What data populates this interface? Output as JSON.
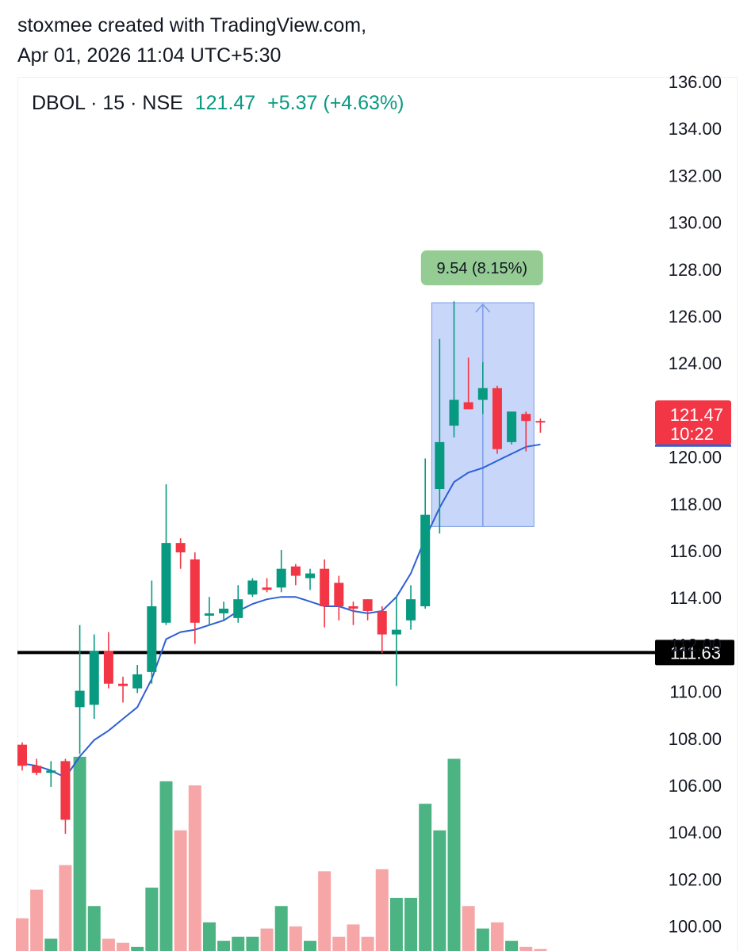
{
  "header": {
    "line1": "stoxmee created with TradingView.com,",
    "line2": "Apr 01, 2026 11:04 UTC+5:30"
  },
  "legend": {
    "symbol": "DBOL · 15 · NSE",
    "price": "121.47",
    "change": "+5.37 (+4.63%)"
  },
  "colors": {
    "up": "#089981",
    "down": "#f23645",
    "vol_up": "#4cb383",
    "vol_down": "#f6a6a6",
    "ma": "#2f5fd6",
    "range_fill": "#c8d6fa",
    "range_stroke": "#7d9ce6",
    "range_label_bg": "#94cc94",
    "level": "#000000"
  },
  "chart_data": {
    "type": "candlestick",
    "y_axis": {
      "min": 99,
      "max": 136,
      "ticks": [
        "136.00",
        "134.00",
        "132.00",
        "130.00",
        "128.00",
        "126.00",
        "124.00",
        "122.00",
        "120.00",
        "118.00",
        "116.00",
        "114.00",
        "112.00",
        "110.00",
        "108.00",
        "106.00",
        "104.00",
        "102.00",
        "100.00"
      ]
    },
    "candles": [
      {
        "o": 107.7,
        "h": 107.8,
        "l": 106.6,
        "c": 106.8
      },
      {
        "o": 106.8,
        "h": 107.1,
        "l": 106.4,
        "c": 106.5
      },
      {
        "o": 106.5,
        "h": 107.0,
        "l": 105.9,
        "c": 106.6
      },
      {
        "o": 107.0,
        "h": 107.1,
        "l": 103.9,
        "c": 104.5
      },
      {
        "o": 109.3,
        "h": 112.8,
        "l": 107.3,
        "c": 110.0
      },
      {
        "o": 109.4,
        "h": 112.4,
        "l": 108.8,
        "c": 111.7
      },
      {
        "o": 111.7,
        "h": 112.5,
        "l": 110.1,
        "c": 110.3
      },
      {
        "o": 110.3,
        "h": 110.6,
        "l": 109.5,
        "c": 110.2
      },
      {
        "o": 110.1,
        "h": 111.1,
        "l": 109.9,
        "c": 110.7
      },
      {
        "o": 110.8,
        "h": 114.7,
        "l": 110.3,
        "c": 113.6
      },
      {
        "o": 112.9,
        "h": 118.8,
        "l": 112.8,
        "c": 116.3
      },
      {
        "o": 116.3,
        "h": 116.5,
        "l": 115.2,
        "c": 115.9
      },
      {
        "o": 115.6,
        "h": 115.9,
        "l": 112.0,
        "c": 112.9
      },
      {
        "o": 113.2,
        "h": 114.0,
        "l": 112.8,
        "c": 113.3
      },
      {
        "o": 113.3,
        "h": 113.8,
        "l": 113.0,
        "c": 113.5
      },
      {
        "o": 113.1,
        "h": 114.5,
        "l": 112.9,
        "c": 113.9
      },
      {
        "o": 114.1,
        "h": 114.8,
        "l": 114.0,
        "c": 114.7
      },
      {
        "o": 114.4,
        "h": 114.8,
        "l": 114.2,
        "c": 114.3
      },
      {
        "o": 114.4,
        "h": 116.0,
        "l": 114.2,
        "c": 115.2
      },
      {
        "o": 115.3,
        "h": 115.4,
        "l": 114.5,
        "c": 114.9
      },
      {
        "o": 114.8,
        "h": 115.2,
        "l": 114.3,
        "c": 115.0
      },
      {
        "o": 115.2,
        "h": 115.6,
        "l": 112.7,
        "c": 113.6
      },
      {
        "o": 114.6,
        "h": 114.9,
        "l": 113.0,
        "c": 113.6
      },
      {
        "o": 113.6,
        "h": 113.8,
        "l": 112.8,
        "c": 113.5
      },
      {
        "o": 113.9,
        "h": 113.9,
        "l": 113.0,
        "c": 113.4
      },
      {
        "o": 113.4,
        "h": 113.6,
        "l": 111.6,
        "c": 112.4
      },
      {
        "o": 112.4,
        "h": 114.0,
        "l": 110.2,
        "c": 112.6
      },
      {
        "o": 113.0,
        "h": 114.5,
        "l": 112.6,
        "c": 113.9
      },
      {
        "o": 113.6,
        "h": 119.9,
        "l": 113.5,
        "c": 117.5
      },
      {
        "o": 118.6,
        "h": 125.0,
        "l": 116.7,
        "c": 120.6
      },
      {
        "o": 121.3,
        "h": 126.6,
        "l": 120.8,
        "c": 122.4
      },
      {
        "o": 122.3,
        "h": 124.2,
        "l": 122.1,
        "c": 122.0
      },
      {
        "o": 122.4,
        "h": 124.0,
        "l": 121.8,
        "c": 122.9
      },
      {
        "o": 122.9,
        "h": 123.0,
        "l": 120.1,
        "c": 120.3
      },
      {
        "o": 120.6,
        "h": 121.9,
        "l": 120.5,
        "c": 121.9
      },
      {
        "o": 121.8,
        "h": 121.9,
        "l": 120.2,
        "c": 121.5
      },
      {
        "o": 121.5,
        "h": 121.6,
        "l": 121.0,
        "c": 121.47
      }
    ],
    "volume_relative": [
      0.16,
      0.3,
      0.06,
      0.42,
      0.95,
      0.22,
      0.06,
      0.04,
      0.02,
      0.31,
      0.83,
      0.59,
      0.81,
      0.14,
      0.05,
      0.07,
      0.07,
      0.11,
      0.22,
      0.12,
      0.05,
      0.39,
      0.07,
      0.13,
      0.07,
      0.4,
      0.26,
      0.26,
      0.72,
      0.59,
      0.94,
      0.22,
      0.11,
      0.14,
      0.05,
      0.02,
      0.01
    ],
    "ma": [
      106.9,
      106.8,
      106.6,
      106.3,
      107.2,
      107.9,
      108.3,
      108.8,
      109.3,
      110.5,
      112.2,
      112.5,
      112.6,
      112.8,
      113.0,
      113.4,
      113.7,
      113.9,
      114.0,
      114.0,
      113.8,
      113.6,
      113.6,
      113.4,
      113.3,
      113.4,
      114.0,
      115.0,
      116.5,
      117.8,
      118.9,
      119.3,
      119.5,
      119.8,
      120.1,
      120.4,
      120.5
    ],
    "support_level": 111.63,
    "support_label": "111.63",
    "range": {
      "start_index": 29,
      "end_index": 35,
      "low": 117.0,
      "high": 126.54,
      "label": "9.54 (8.15%)"
    },
    "last_price_label": "121.47",
    "countdown_label": "10:22"
  }
}
